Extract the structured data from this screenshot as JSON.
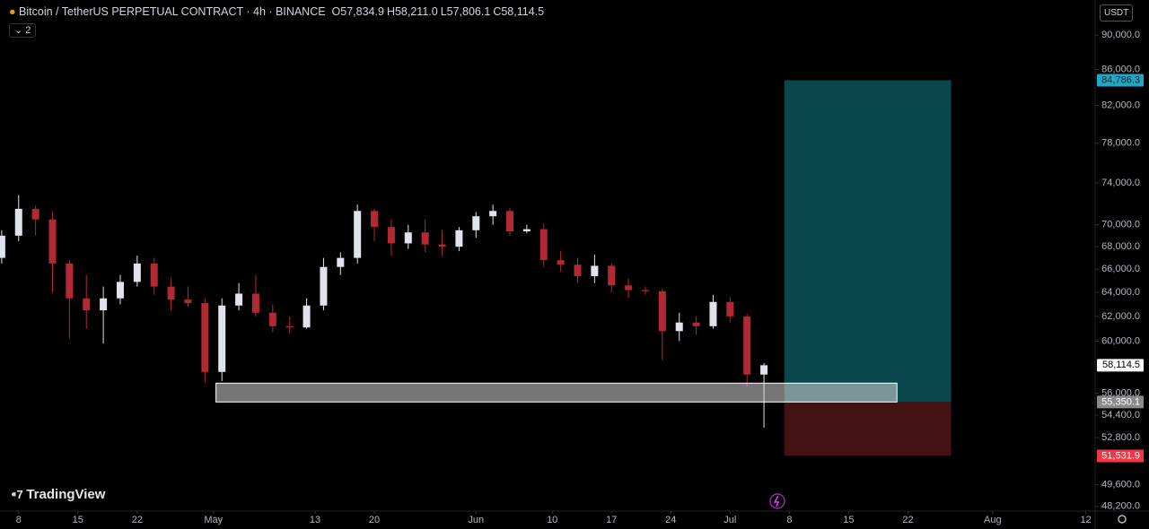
{
  "chart_data": {
    "type": "candlestick",
    "title": "Bitcoin / TetherUS PERPETUAL CONTRACT · 4h · BINANCE",
    "ohlc_header": [
      {
        "label": "O",
        "value": "57,834.9"
      },
      {
        "label": "H",
        "value": "58,211.0"
      },
      {
        "label": "L",
        "value": "57,806.1"
      },
      {
        "label": "C",
        "value": "58,114.5"
      }
    ],
    "currency": "USDT",
    "indicator_count": "2",
    "brand": "TradingView",
    "log_scale": true,
    "up_color": "#e0e3eb",
    "down_color": "#b22833",
    "x": [
      6,
      8,
      10,
      12,
      14,
      16,
      18,
      20,
      22,
      24,
      26,
      28,
      30,
      32,
      34,
      36,
      38,
      40,
      42,
      44,
      46,
      48,
      50,
      52,
      54,
      56,
      58,
      60,
      62,
      64,
      66,
      68,
      70,
      72,
      74,
      76,
      78,
      80,
      82,
      84,
      86,
      88,
      90,
      92,
      94,
      96
    ],
    "open": [
      67000,
      69000,
      71500,
      70500,
      66500,
      63500,
      62500,
      63500,
      64900,
      66500,
      64500,
      63400,
      63100,
      57600,
      62900,
      63900,
      62300,
      61200,
      61100,
      62900,
      66200,
      67000,
      71300,
      69800,
      68300,
      69300,
      68200,
      68000,
      69500,
      70800,
      71300,
      69400,
      69600,
      66800,
      66400,
      65400,
      66300,
      64600,
      64200,
      64100,
      60800,
      61500,
      61200,
      63200,
      62000,
      57400
    ],
    "high": [
      69500,
      72800,
      71800,
      71200,
      66800,
      65500,
      64500,
      65500,
      67200,
      67000,
      65200,
      64500,
      63500,
      63500,
      64800,
      65500,
      63000,
      62000,
      63500,
      67000,
      67500,
      71900,
      71500,
      70500,
      70000,
      70500,
      69500,
      69800,
      71200,
      71900,
      71600,
      70000,
      70100,
      67600,
      67000,
      67300,
      66500,
      65200,
      64500,
      64300,
      62300,
      62000,
      63800,
      63600,
      62200,
      58300
    ],
    "low": [
      66500,
      68500,
      69000,
      64000,
      60200,
      61000,
      59800,
      63000,
      64500,
      63800,
      62500,
      62800,
      56800,
      56900,
      62500,
      62000,
      60700,
      60600,
      61000,
      62500,
      65500,
      66500,
      68500,
      67200,
      67800,
      67500,
      67200,
      67600,
      68800,
      70000,
      69000,
      69200,
      66200,
      65800,
      64800,
      64800,
      64000,
      63500,
      63800,
      58500,
      60000,
      60500,
      61000,
      61500,
      56500,
      53500
    ],
    "close": [
      69000,
      71500,
      70500,
      66500,
      63500,
      62500,
      63500,
      64900,
      66500,
      64500,
      63400,
      63100,
      57600,
      62900,
      63900,
      62300,
      61200,
      61100,
      62900,
      66200,
      67000,
      71300,
      69800,
      68300,
      69300,
      68200,
      68000,
      69500,
      70800,
      71300,
      69400,
      69600,
      66800,
      66400,
      65400,
      66300,
      64600,
      64200,
      64100,
      60800,
      61500,
      61200,
      63200,
      62000,
      57400,
      58114.5
    ],
    "xlim": [
      5.8,
      135.1
    ],
    "xticks": [
      {
        "value": 8,
        "label": "8"
      },
      {
        "value": 15,
        "label": "15"
      },
      {
        "value": 22,
        "label": "22"
      },
      {
        "value": 31,
        "label": "May"
      },
      {
        "value": 43,
        "label": "13"
      },
      {
        "value": 50,
        "label": "20"
      },
      {
        "value": 62,
        "label": "Jun"
      },
      {
        "value": 71,
        "label": "10"
      },
      {
        "value": 78,
        "label": "17"
      },
      {
        "value": 85,
        "label": "24"
      },
      {
        "value": 92,
        "label": "Jul"
      },
      {
        "value": 99,
        "label": "8"
      },
      {
        "value": 106,
        "label": "15"
      },
      {
        "value": 113,
        "label": "22"
      },
      {
        "value": 123,
        "label": "Aug"
      },
      {
        "value": 134,
        "label": "12"
      }
    ],
    "ylim": [
      94300,
      47900
    ],
    "yticks": [
      {
        "value": 90000,
        "label": "90,000.0"
      },
      {
        "value": 86000,
        "label": "86,000.0"
      },
      {
        "value": 82000,
        "label": "82,000.0"
      },
      {
        "value": 78000,
        "label": "78,000.0"
      },
      {
        "value": 74000,
        "label": "74,000.0"
      },
      {
        "value": 70000,
        "label": "70,000.0"
      },
      {
        "value": 68000,
        "label": "68,000.0"
      },
      {
        "value": 66000,
        "label": "66,000.0"
      },
      {
        "value": 64000,
        "label": "64,000.0"
      },
      {
        "value": 62000,
        "label": "62,000.0"
      },
      {
        "value": 60000,
        "label": "60,000.0"
      },
      {
        "value": 56000,
        "label": "56,000.0"
      },
      {
        "value": 54400,
        "label": "54,400.0"
      },
      {
        "value": 52800,
        "label": "52,800.0"
      },
      {
        "value": 49600,
        "label": "49,600.0"
      },
      {
        "value": 48200,
        "label": "48,200.0"
      }
    ],
    "last_price": {
      "value": 58114.5,
      "label": "58,114.5"
    },
    "position": {
      "start": 98.4,
      "end": 118.1,
      "target": {
        "value": 84786.3,
        "label": "84,786.3"
      },
      "entry": {
        "value": 55350.1,
        "label": "55,350.1"
      },
      "stop": {
        "value": 51531.9,
        "label": "51,531.9"
      },
      "target_color": "#0b4f55",
      "stop_color": "#4a1414"
    },
    "zone": {
      "start": 31.3,
      "end": 111.7,
      "low": 55350.1,
      "high": 56750,
      "color": "#d7d7d7"
    }
  }
}
